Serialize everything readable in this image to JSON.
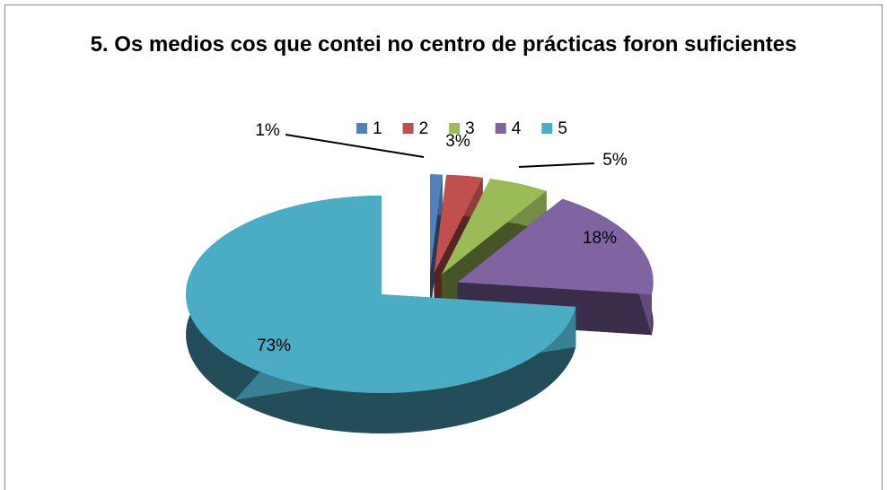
{
  "chart_data": {
    "type": "pie",
    "title": "5. Os medios cos que contei no centro de prácticas foron suficientes",
    "categories": [
      "1",
      "2",
      "3",
      "4",
      "5"
    ],
    "values": [
      1,
      3,
      5,
      18,
      73
    ],
    "value_labels": [
      "1%",
      "3%",
      "5%",
      "18%",
      "73%"
    ],
    "colors": [
      "#4f81bd",
      "#c0504d",
      "#9bbb59",
      "#8064a2",
      "#4bacc6"
    ],
    "legend": "top"
  }
}
